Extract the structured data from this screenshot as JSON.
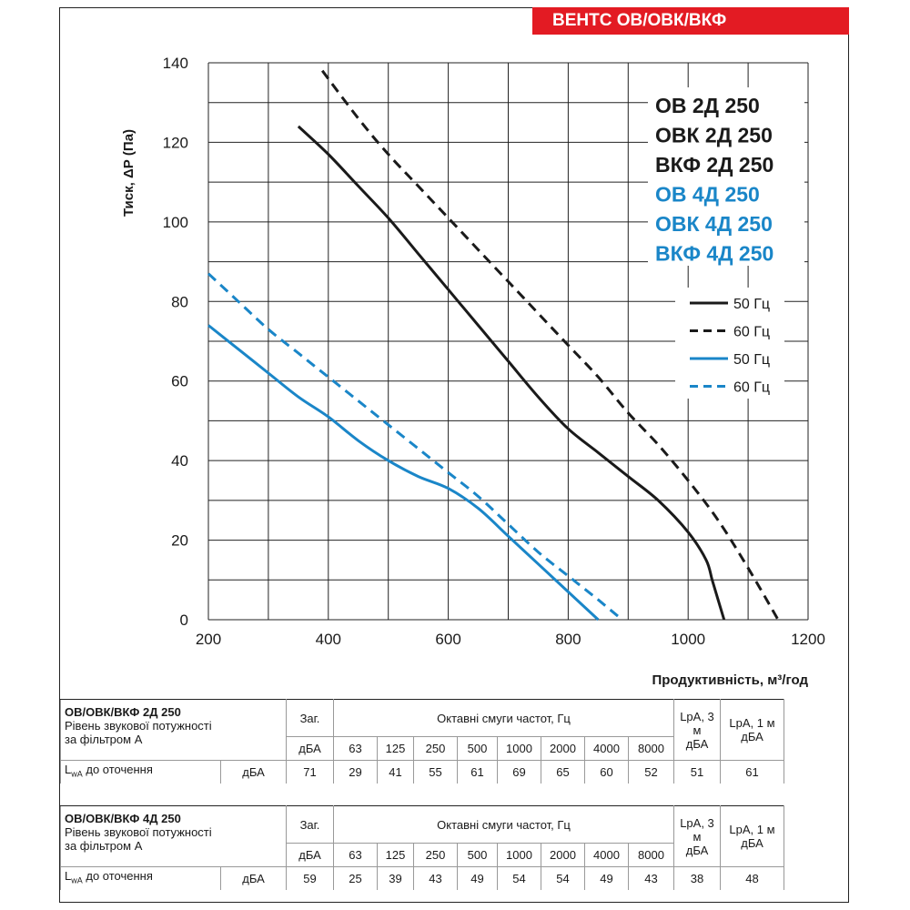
{
  "brand": "ВЕНТС ОВ/ОВК/ВКФ",
  "chart_data": {
    "type": "line",
    "ylabel": "Тиск, ΔР (Па)",
    "xlabel": "Продуктивність, м³/год",
    "xlim": [
      200,
      1200
    ],
    "ylim": [
      0,
      140
    ],
    "x_ticks": [
      200,
      400,
      600,
      800,
      1000,
      1200
    ],
    "y_ticks": [
      0,
      20,
      40,
      60,
      80,
      100,
      120,
      140
    ],
    "grid": true,
    "models": [
      {
        "label": "ОВ 2Д 250",
        "color": "#1a1a1a"
      },
      {
        "label": "ОВК 2Д 250",
        "color": "#1a1a1a"
      },
      {
        "label": "ВКФ 2Д 250",
        "color": "#1a1a1a"
      },
      {
        "label": "ОВ 4Д 250",
        "color": "#1a86c8"
      },
      {
        "label": "ОВК 4Д 250",
        "color": "#1a86c8"
      },
      {
        "label": "ВКФ 4Д 250",
        "color": "#1a86c8"
      }
    ],
    "series": [
      {
        "name": "50 Гц",
        "group": "2Д",
        "color": "#1a1a1a",
        "dash": false,
        "points": [
          [
            350,
            124
          ],
          [
            400,
            117
          ],
          [
            450,
            109
          ],
          [
            500,
            101
          ],
          [
            550,
            92
          ],
          [
            600,
            83
          ],
          [
            650,
            74
          ],
          [
            700,
            65
          ],
          [
            750,
            56
          ],
          [
            800,
            48
          ],
          [
            850,
            42
          ],
          [
            900,
            36
          ],
          [
            950,
            30
          ],
          [
            1000,
            22
          ],
          [
            1030,
            15
          ],
          [
            1040,
            10
          ],
          [
            1050,
            5
          ],
          [
            1060,
            0
          ]
        ]
      },
      {
        "name": "60 Гц",
        "group": "2Д",
        "color": "#1a1a1a",
        "dash": true,
        "points": [
          [
            390,
            138
          ],
          [
            450,
            126
          ],
          [
            500,
            117
          ],
          [
            550,
            109
          ],
          [
            600,
            101
          ],
          [
            650,
            93
          ],
          [
            700,
            85
          ],
          [
            750,
            77
          ],
          [
            800,
            69
          ],
          [
            850,
            61
          ],
          [
            900,
            52
          ],
          [
            950,
            44
          ],
          [
            1000,
            35
          ],
          [
            1050,
            25
          ],
          [
            1100,
            13
          ],
          [
            1150,
            0
          ]
        ]
      },
      {
        "name": "50 Гц",
        "group": "4Д",
        "color": "#1a86c8",
        "dash": false,
        "points": [
          [
            200,
            74
          ],
          [
            250,
            68
          ],
          [
            300,
            62
          ],
          [
            350,
            56
          ],
          [
            400,
            51
          ],
          [
            450,
            45
          ],
          [
            500,
            40
          ],
          [
            550,
            36
          ],
          [
            600,
            33
          ],
          [
            650,
            28
          ],
          [
            700,
            21
          ],
          [
            750,
            14
          ],
          [
            800,
            7
          ],
          [
            850,
            0
          ]
        ]
      },
      {
        "name": "60 Гц",
        "group": "4Д",
        "color": "#1a86c8",
        "dash": true,
        "points": [
          [
            200,
            87
          ],
          [
            250,
            80
          ],
          [
            300,
            73
          ],
          [
            350,
            67
          ],
          [
            400,
            61
          ],
          [
            450,
            55
          ],
          [
            500,
            49
          ],
          [
            550,
            43
          ],
          [
            600,
            37
          ],
          [
            650,
            31
          ],
          [
            700,
            24
          ],
          [
            750,
            17
          ],
          [
            800,
            11
          ],
          [
            850,
            5
          ],
          [
            890,
            0
          ]
        ]
      }
    ]
  },
  "tables": [
    {
      "title": "ОВ/ОВК/ВКФ 2Д 250",
      "subtitle": "Рівень звукової потужності",
      "filter": "за фільтром А",
      "total_label": "Заг.",
      "total_unit": "дБА",
      "bands_label": "Октавні смуги частот, Гц",
      "bands": [
        "63",
        "125",
        "250",
        "500",
        "1000",
        "2000",
        "4000",
        "8000"
      ],
      "lpa3_label": "LpA, 3 м",
      "lpa1_label": "LpA, 1 м",
      "lpa_unit": "дБА",
      "row_label_main": "L",
      "row_label_sub": "wA",
      "row_label_rest": " до оточення",
      "row_unit": "дБА",
      "total": "71",
      "values": [
        "29",
        "41",
        "55",
        "61",
        "69",
        "65",
        "60",
        "52"
      ],
      "lpa3": "51",
      "lpa1": "61"
    },
    {
      "title": "ОВ/ОВК/ВКФ 4Д 250",
      "subtitle": "Рівень звукової потужності",
      "filter": "за фільтром А",
      "total_label": "Заг.",
      "total_unit": "дБА",
      "bands_label": "Октавні смуги частот, Гц",
      "bands": [
        "63",
        "125",
        "250",
        "500",
        "1000",
        "2000",
        "4000",
        "8000"
      ],
      "lpa3_label": "LpA, 3 м",
      "lpa1_label": "LpA, 1 м",
      "lpa_unit": "дБА",
      "row_label_main": "L",
      "row_label_sub": "wA",
      "row_label_rest": " до оточення",
      "row_unit": "дБА",
      "total": "59",
      "values": [
        "25",
        "39",
        "43",
        "49",
        "54",
        "54",
        "49",
        "43"
      ],
      "lpa3": "38",
      "lpa1": "48"
    }
  ]
}
